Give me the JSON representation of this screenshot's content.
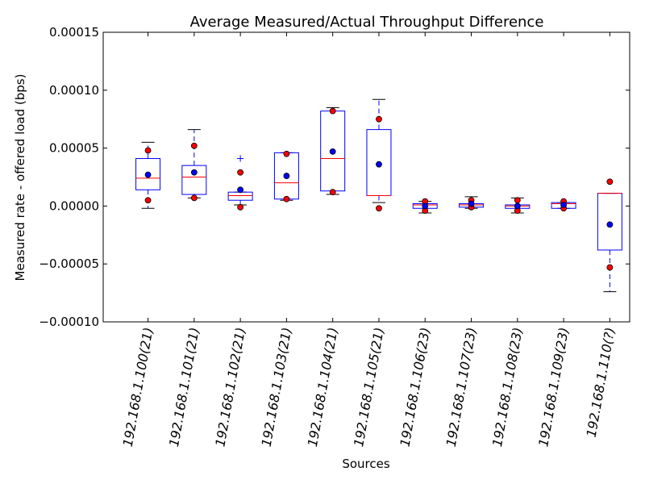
{
  "chart_data": {
    "type": "box",
    "title": "Average Measured/Actual Throughput Difference",
    "xlabel": "Sources",
    "ylabel": "Measured rate - offered load (bps)",
    "ylim": [
      -0.0001,
      0.00015
    ],
    "yticks": [
      -0.0001,
      -5e-05,
      0,
      5e-05,
      0.0001,
      0.00015
    ],
    "ytick_labels": [
      "−0.00010",
      "−0.00005",
      "0.00000",
      "0.00005",
      "0.00010",
      "0.00015"
    ],
    "grid": false,
    "colors": {
      "box": "#0000ff",
      "median": "#ff0000",
      "red_points": "#ff0000",
      "blue_points": "#0000ff"
    },
    "categories": [
      "192.168.1.100(21)",
      "192.168.1.101(21)",
      "192.168.1.102(21)",
      "192.168.1.103(21)",
      "192.168.1.104(21)",
      "192.168.1.105(21)",
      "192.168.1.106(23)",
      "192.168.1.107(23)",
      "192.168.1.108(23)",
      "192.168.1.109(23)",
      "192.168.1.110(?)"
    ],
    "boxes": [
      {
        "whisker_low": -2e-06,
        "q1": 1.4e-05,
        "median": 2.4e-05,
        "q3": 4.1e-05,
        "whisker_high": 5.5e-05,
        "outliers": [],
        "red_points": [
          4.8e-05,
          5e-06
        ],
        "blue_points": [
          2.7e-05
        ]
      },
      {
        "whisker_low": 7e-06,
        "q1": 1e-05,
        "median": 2.5e-05,
        "q3": 3.5e-05,
        "whisker_high": 6.6e-05,
        "outliers": [],
        "red_points": [
          5.2e-05,
          7e-06
        ],
        "blue_points": [
          2.9e-05
        ]
      },
      {
        "whisker_low": 1e-06,
        "q1": 5e-06,
        "median": 9e-06,
        "q3": 1.2e-05,
        "whisker_high": 1.2e-05,
        "outliers": [
          4.1e-05
        ],
        "red_points": [
          2.9e-05,
          -1e-06
        ],
        "blue_points": [
          1.4e-05
        ]
      },
      {
        "whisker_low": 5e-06,
        "q1": 6e-06,
        "median": 2e-05,
        "q3": 4.6e-05,
        "whisker_high": 4.6e-05,
        "outliers": [],
        "red_points": [
          4.5e-05,
          6e-06
        ],
        "blue_points": [
          2.6e-05
        ]
      },
      {
        "whisker_low": 1e-05,
        "q1": 1.3e-05,
        "median": 4.1e-05,
        "q3": 8.2e-05,
        "whisker_high": 8.5e-05,
        "outliers": [],
        "red_points": [
          8.2e-05,
          1.2e-05
        ],
        "blue_points": [
          4.7e-05
        ]
      },
      {
        "whisker_low": 3e-06,
        "q1": 9e-06,
        "median": 9e-06,
        "q3": 6.6e-05,
        "whisker_high": 9.2e-05,
        "outliers": [],
        "red_points": [
          7.5e-05,
          -2e-06
        ],
        "blue_points": [
          3.6e-05
        ]
      },
      {
        "whisker_low": -6e-06,
        "q1": -2e-06,
        "median": 1e-06,
        "q3": 2e-06,
        "whisker_high": 4e-06,
        "outliers": [],
        "red_points": [
          4e-06,
          -4e-06
        ],
        "blue_points": [
          0.0
        ]
      },
      {
        "whisker_low": -2e-06,
        "q1": -1e-06,
        "median": 1e-06,
        "q3": 2e-06,
        "whisker_high": 8e-06,
        "outliers": [],
        "red_points": [
          5e-06,
          -1e-06
        ],
        "blue_points": [
          2e-06
        ]
      },
      {
        "whisker_low": -6e-06,
        "q1": -2e-06,
        "median": 0.0,
        "q3": 1e-06,
        "whisker_high": 7e-06,
        "outliers": [],
        "red_points": [
          5e-06,
          -4e-06
        ],
        "blue_points": [
          0.0
        ]
      },
      {
        "whisker_low": -2e-06,
        "q1": -2e-06,
        "median": 2e-06,
        "q3": 3e-06,
        "whisker_high": 3e-06,
        "outliers": [],
        "red_points": [
          4e-06,
          -2e-06
        ],
        "blue_points": [
          1e-06
        ]
      },
      {
        "whisker_low": -7.4e-05,
        "q1": -3.8e-05,
        "median": 1.1e-05,
        "q3": 1.1e-05,
        "whisker_high": 1.1e-05,
        "outliers": [],
        "red_points": [
          2.1e-05,
          -5.3e-05
        ],
        "blue_points": [
          -1.6e-05
        ]
      }
    ]
  }
}
